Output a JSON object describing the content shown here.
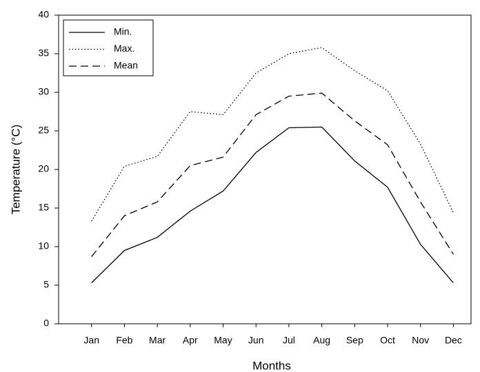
{
  "chart_data": {
    "type": "line",
    "x_label": "Months",
    "y_label": "Temperature (°C)",
    "categories": [
      "Jan",
      "Feb",
      "Mar",
      "Apr",
      "May",
      "Jun",
      "Jul",
      "Aug",
      "Sep",
      "Oct",
      "Nov",
      "Dec"
    ],
    "series": [
      {
        "name": "Min.",
        "color": "#000000",
        "dash": "none",
        "values": [
          5.3,
          9.5,
          11.2,
          14.6,
          17.2,
          22.2,
          25.4,
          25.5,
          21.1,
          17.7,
          10.3,
          5.3
        ]
      },
      {
        "name": "Max.",
        "color": "#000000",
        "dash": "1.5,3",
        "values": [
          13.3,
          20.4,
          21.7,
          27.5,
          27.1,
          32.5,
          35.0,
          35.8,
          32.8,
          30.2,
          23.3,
          14.4
        ]
      },
      {
        "name": "Mean",
        "color": "#000000",
        "dash": "11,6",
        "values": [
          8.7,
          14.0,
          15.8,
          20.5,
          21.6,
          27.1,
          29.5,
          29.9,
          26.3,
          23.2,
          15.8,
          9.0
        ]
      }
    ],
    "ylim": [
      0,
      40
    ],
    "yticks": [
      0,
      5,
      10,
      15,
      20,
      25,
      30,
      35,
      40
    ],
    "legend": "upper left"
  }
}
